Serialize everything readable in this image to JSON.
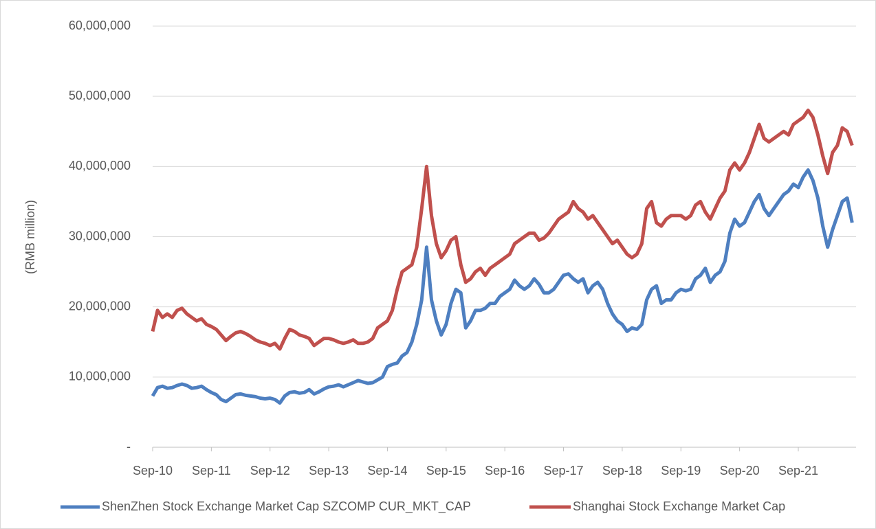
{
  "chart_data": {
    "type": "line",
    "y_label": "(RMB million)",
    "categories": [
      "Sep-10",
      null,
      null,
      null,
      null,
      null,
      null,
      null,
      null,
      null,
      null,
      null,
      "Sep-11",
      null,
      null,
      null,
      null,
      null,
      null,
      null,
      null,
      null,
      null,
      null,
      "Sep-12",
      null,
      null,
      null,
      null,
      null,
      null,
      null,
      null,
      null,
      null,
      null,
      "Sep-13",
      null,
      null,
      null,
      null,
      null,
      null,
      null,
      null,
      null,
      null,
      null,
      "Sep-14",
      null,
      null,
      null,
      null,
      null,
      null,
      null,
      null,
      null,
      null,
      null,
      "Sep-15",
      null,
      null,
      null,
      null,
      null,
      null,
      null,
      null,
      null,
      null,
      null,
      "Sep-16",
      null,
      null,
      null,
      null,
      null,
      null,
      null,
      null,
      null,
      null,
      null,
      "Sep-17",
      null,
      null,
      null,
      null,
      null,
      null,
      null,
      null,
      null,
      null,
      null,
      "Sep-18",
      null,
      null,
      null,
      null,
      null,
      null,
      null,
      null,
      null,
      null,
      null,
      "Sep-19",
      null,
      null,
      null,
      null,
      null,
      null,
      null,
      null,
      null,
      null,
      null,
      "Sep-20",
      null,
      null,
      null,
      null,
      null,
      null,
      null,
      null,
      null,
      null,
      null,
      "Sep-21",
      null,
      null,
      null,
      null,
      null,
      null,
      null,
      null,
      null,
      null,
      null
    ],
    "series": [
      {
        "name": "ShenZhen Stock Exchange Market Cap SZCOMP CUR_MKT_CAP",
        "color": "#4e7fc0",
        "values": [
          7300000,
          8500000,
          8700000,
          8400000,
          8500000,
          8800000,
          9000000,
          8800000,
          8400000,
          8500000,
          8700000,
          8200000,
          7800000,
          7500000,
          6800000,
          6500000,
          7000000,
          7500000,
          7600000,
          7400000,
          7300000,
          7200000,
          7000000,
          6900000,
          7000000,
          6800000,
          6300000,
          7300000,
          7800000,
          7900000,
          7700000,
          7800000,
          8200000,
          7600000,
          7900000,
          8300000,
          8600000,
          8700000,
          8900000,
          8600000,
          8900000,
          9200000,
          9500000,
          9300000,
          9100000,
          9200000,
          9600000,
          10000000,
          11500000,
          11800000,
          12000000,
          13000000,
          13500000,
          15000000,
          17500000,
          21000000,
          28500000,
          21000000,
          18000000,
          16000000,
          17500000,
          20500000,
          22500000,
          22000000,
          17000000,
          18000000,
          19500000,
          19500000,
          19800000,
          20500000,
          20500000,
          21500000,
          22000000,
          22500000,
          23800000,
          23000000,
          22500000,
          23000000,
          24000000,
          23200000,
          22000000,
          22000000,
          22500000,
          23500000,
          24500000,
          24700000,
          24000000,
          23500000,
          24000000,
          22000000,
          23000000,
          23500000,
          22500000,
          20500000,
          19000000,
          18000000,
          17500000,
          16500000,
          17000000,
          16800000,
          17500000,
          21000000,
          22500000,
          23000000,
          20500000,
          21000000,
          21000000,
          22000000,
          22500000,
          22300000,
          22500000,
          24000000,
          24500000,
          25500000,
          23500000,
          24500000,
          25000000,
          26500000,
          30500000,
          32500000,
          31500000,
          32000000,
          33500000,
          35000000,
          36000000,
          34000000,
          33000000,
          34000000,
          35000000,
          36000000,
          36500000,
          37500000,
          37000000,
          38500000,
          39500000,
          38000000,
          35500000,
          31500000,
          28500000,
          31000000,
          33000000,
          35000000,
          35500000,
          32000000
        ]
      },
      {
        "name": "Shanghai Stock Exchange Market Cap",
        "color": "#c0504d",
        "values": [
          16500000,
          19500000,
          18500000,
          19000000,
          18500000,
          19500000,
          19800000,
          19000000,
          18500000,
          18000000,
          18300000,
          17500000,
          17200000,
          16800000,
          16000000,
          15200000,
          15800000,
          16300000,
          16500000,
          16200000,
          15800000,
          15300000,
          15000000,
          14800000,
          14500000,
          14800000,
          14000000,
          15500000,
          16800000,
          16500000,
          16000000,
          15800000,
          15500000,
          14500000,
          15000000,
          15500000,
          15500000,
          15300000,
          15000000,
          14800000,
          15000000,
          15300000,
          14800000,
          14800000,
          15000000,
          15500000,
          17000000,
          17500000,
          18000000,
          19500000,
          22500000,
          25000000,
          25500000,
          26000000,
          28500000,
          34000000,
          40000000,
          33000000,
          29000000,
          27000000,
          28000000,
          29500000,
          30000000,
          26000000,
          23500000,
          24000000,
          25000000,
          25500000,
          24500000,
          25500000,
          26000000,
          26500000,
          27000000,
          27500000,
          29000000,
          29500000,
          30000000,
          30500000,
          30500000,
          29500000,
          29800000,
          30500000,
          31500000,
          32500000,
          33000000,
          33500000,
          35000000,
          34000000,
          33500000,
          32500000,
          33000000,
          32000000,
          31000000,
          30000000,
          29000000,
          29500000,
          28500000,
          27500000,
          27000000,
          27500000,
          29000000,
          34000000,
          35000000,
          32000000,
          31500000,
          32500000,
          33000000,
          33000000,
          33000000,
          32500000,
          33000000,
          34500000,
          35000000,
          33500000,
          32500000,
          34000000,
          35500000,
          36500000,
          39500000,
          40500000,
          39500000,
          40500000,
          42000000,
          44000000,
          46000000,
          44000000,
          43500000,
          44000000,
          44500000,
          45000000,
          44500000,
          46000000,
          46500000,
          47000000,
          48000000,
          47000000,
          44500000,
          41500000,
          39000000,
          42000000,
          43000000,
          45500000,
          45000000,
          43000000
        ]
      }
    ],
    "ylim": [
      0,
      60000000
    ],
    "yticks": [
      {
        "value": 0,
        "label": "-"
      },
      {
        "value": 10000000,
        "label": "10,000,000"
      },
      {
        "value": 20000000,
        "label": "20,000,000"
      },
      {
        "value": 30000000,
        "label": "30,000,000"
      },
      {
        "value": 40000000,
        "label": "40,000,000"
      },
      {
        "value": 50000000,
        "label": "50,000,000"
      },
      {
        "value": 60000000,
        "label": "60,000,000"
      }
    ],
    "grid": true,
    "legend": "bottom"
  }
}
